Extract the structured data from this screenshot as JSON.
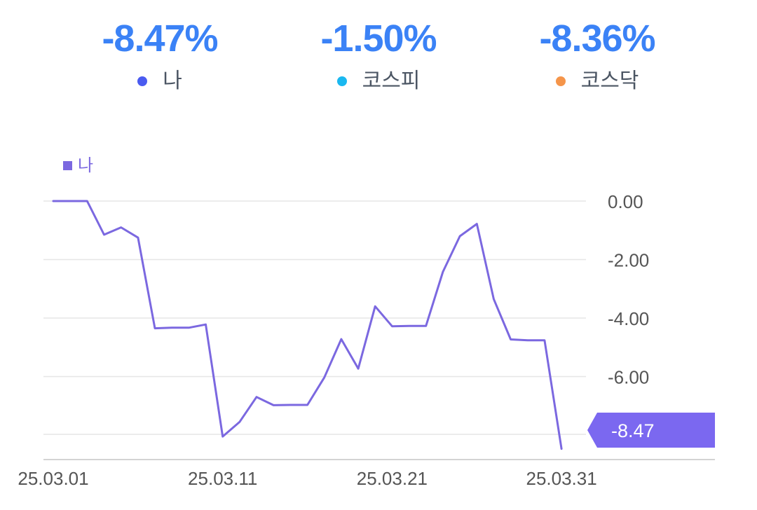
{
  "summary": [
    {
      "value": "-8.47%",
      "label": "나",
      "dot_color": "#4a5bf0"
    },
    {
      "value": "-1.50%",
      "label": "코스피",
      "dot_color": "#1ab8f0"
    },
    {
      "value": "-8.36%",
      "label": "코스닥",
      "dot_color": "#f5954a"
    }
  ],
  "chart_data": {
    "type": "line",
    "legend": "나",
    "legend_placement": "top-left",
    "series": [
      {
        "name": "나",
        "color": "#7b68e0",
        "values": [
          0.0,
          0.0,
          0.0,
          -1.15,
          -0.9,
          -1.25,
          -4.35,
          -4.33,
          -4.33,
          -4.22,
          -8.05,
          -7.55,
          -6.7,
          -6.98,
          -6.97,
          -6.97,
          -6.03,
          -4.72,
          -5.73,
          -3.6,
          -4.28,
          -4.27,
          -4.27,
          -2.42,
          -1.2,
          -0.78,
          -3.35,
          -4.73,
          -4.76,
          -4.76,
          -8.47
        ]
      }
    ],
    "x_tick_labels": [
      {
        "index": 0,
        "label": "25.03.01"
      },
      {
        "index": 10,
        "label": "25.03.11"
      },
      {
        "index": 20,
        "label": "25.03.21"
      },
      {
        "index": 30,
        "label": "25.03.31"
      }
    ],
    "y_ticks": [
      "0.00",
      "-2.00",
      "-4.00",
      "-6.00"
    ],
    "y_tick_values": [
      0,
      -2,
      -4,
      -6
    ],
    "ylim": [
      -8.47,
      0
    ],
    "grid": true,
    "last_value_label": "-8.47",
    "last_value_color": "#7b68f0"
  }
}
